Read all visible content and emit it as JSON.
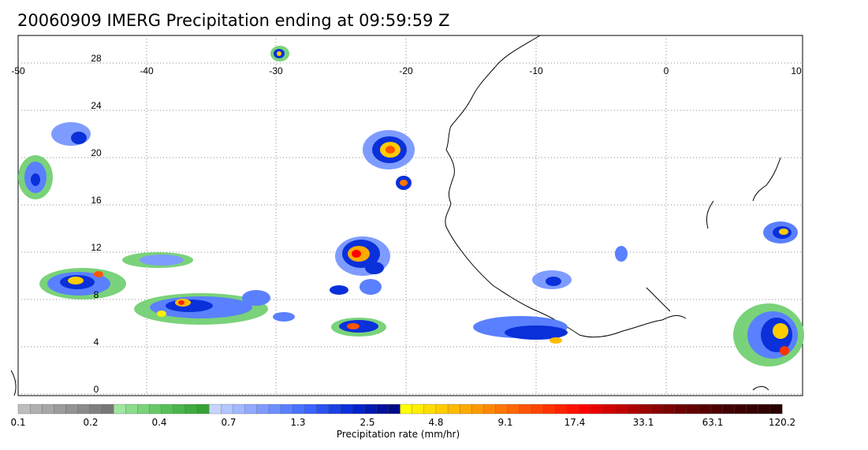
{
  "title": "20060909 IMERG Precipitation ending at 09:59:59 Z",
  "axes": {
    "lon_ticks": [
      "-50",
      "-40",
      "-30",
      "-20",
      "-10",
      "0",
      "10"
    ],
    "lat_ticks": [
      "28",
      "24",
      "20",
      "16",
      "12",
      "8",
      "4",
      "0"
    ]
  },
  "colorbar": {
    "label": "Precipitation rate (mm/hr)",
    "tick_labels": [
      "0.1",
      "0.2",
      "0.4",
      "0.7",
      "1.3",
      "2.5",
      "4.8",
      "9.1",
      "17.4",
      "33.1",
      "63.1",
      "120.2"
    ],
    "colors": [
      "#bdbdbd",
      "#b0b0b0",
      "#a6a6a6",
      "#9c9c9c",
      "#939393",
      "#8a8a8a",
      "#808080",
      "#777777",
      "#a0e6a0",
      "#8ddc8d",
      "#7ad27a",
      "#68c868",
      "#58bf58",
      "#4ab54a",
      "#3fab3f",
      "#36a236",
      "#c8d4ff",
      "#b4c6ff",
      "#a2b8ff",
      "#90aaff",
      "#7e9cff",
      "#6c8eff",
      "#5a80ff",
      "#4872ff",
      "#3a64ff",
      "#2a52f2",
      "#1a40e6",
      "#0a30da",
      "#0022cc",
      "#0018b4",
      "#00109c",
      "#000a88",
      "#ffff00",
      "#ffee00",
      "#ffdd00",
      "#ffcc00",
      "#ffbb00",
      "#ffaa00",
      "#ff9900",
      "#ff8800",
      "#ff7700",
      "#ff6600",
      "#ff5500",
      "#ff4400",
      "#ff3300",
      "#ff2200",
      "#ff1100",
      "#ff0000",
      "#e80000",
      "#d40000",
      "#c00000",
      "#ae0000",
      "#9c0000",
      "#8c0000",
      "#7e0000",
      "#700000",
      "#640000",
      "#580000",
      "#4e0000",
      "#440000",
      "#3c0000",
      "#360000",
      "#300000",
      "#2a0000"
    ]
  },
  "legend_colors": {
    "coastline": "#000000",
    "grid": "#888888"
  }
}
